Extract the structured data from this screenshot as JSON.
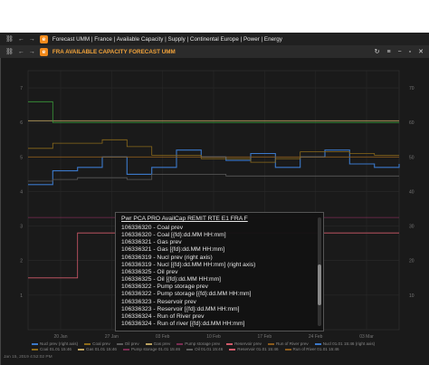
{
  "window": {
    "breadcrumb_title": "Forecast UMM | France | Available Capacity | Supply | Continental Europe | Power | Energy",
    "chart_title": "FRA AVAILABLE CAPACITY FORECAST UMM",
    "logo_letter": "e"
  },
  "colors": {
    "background": "#1a1a1a",
    "title": "#f2a33a",
    "nuclear": "#3b78c9",
    "coal": "#8c6a1a",
    "oil": "#5a5a5a",
    "gas": "#b9a060",
    "pump_storage": "#7a2c52",
    "reservoir": "#d05a6a",
    "run_of_river": "#8a5a1c",
    "gas_green": "#3a9a3a"
  },
  "tooltip": {
    "title": "Pwr PCA PRO AvailCap REMIT RTE E1 FRA F",
    "items": [
      "106336320 - Coal prev",
      "106336320 - Coal [{fd}:dd.MM HH:mm]",
      "106336321 - Gas prev",
      "106336321 - Gas [{fd}:dd.MM HH:mm]",
      "106336319 - Nucl prev (right axis)",
      "106336319 - Nucl [{fd}:dd.MM HH:mm] (right axis)",
      "106336325 - Oil prev",
      "106336325 - Oil [{fd}:dd.MM HH:mm]",
      "106336322 - Pump storage prev",
      "106336322 - Pump storage [{fd}:dd.MM HH:mm]",
      "106336323 - Reservoir prev",
      "106336323 - Reservoir [{fd}:dd.MM HH:mm]",
      "106336324 - Run of River prev",
      "106336324 - Run of river [{fd}:dd.MM HH:mm]"
    ]
  },
  "legend": [
    {
      "label": "Nucl prev (right axis)",
      "color": "#3b78c9"
    },
    {
      "label": "Coal prev",
      "color": "#8c6a1a"
    },
    {
      "label": "Oil prev",
      "color": "#5a5a5a"
    },
    {
      "label": "Gas prev",
      "color": "#b9a060"
    },
    {
      "label": "Pump storage prev",
      "color": "#7a2c52"
    },
    {
      "label": "Reservoir prev",
      "color": "#d05a6a"
    },
    {
      "label": "Run of River prev",
      "color": "#8a5a1c"
    },
    {
      "label": "Nucl 01.01 15:46 (right axis)",
      "color": "#3b78c9"
    },
    {
      "label": "Coal 01.01 15:46",
      "color": "#8c6a1a"
    },
    {
      "label": "Gas 01.01 15:46",
      "color": "#b9a060"
    },
    {
      "label": "Pump storage 01.01 15:46",
      "color": "#7a2c52"
    },
    {
      "label": "Oil 01.01 15:46",
      "color": "#5a5a5a"
    },
    {
      "label": "Reservoir 01.01 15:46",
      "color": "#d05a6a"
    },
    {
      "label": "Run of River 01.01 15:46",
      "color": "#8a5a1c"
    }
  ],
  "timestamp": "Jan 15, 2019 4:52:02 PM",
  "chart_data": {
    "type": "line",
    "left_ticks": [
      "1",
      "2",
      "3",
      "4",
      "5",
      "6",
      "7"
    ],
    "right_ticks": [
      "10",
      "20",
      "30",
      "40",
      "50",
      "60",
      "70"
    ],
    "x_ticks": [
      "20 Jan",
      "27 Jan",
      "03 Feb",
      "10 Feb",
      "17 Feb",
      "24 Feb",
      "03 Mar"
    ],
    "ylim_left": [
      0,
      7.5
    ],
    "ylim_right": [
      0,
      75
    ],
    "grid": true,
    "series": [
      {
        "key": "nuclear",
        "axis": "right",
        "values": [
          42,
          46,
          47,
          50,
          45,
          47,
          52,
          50,
          49,
          51,
          47,
          50,
          52,
          48,
          47,
          48
        ]
      },
      {
        "key": "coal",
        "axis": "left",
        "values": [
          5.25,
          5.4,
          5.4,
          5.5,
          5.3,
          5.05,
          5.05,
          4.95,
          4.95,
          4.85,
          4.95,
          5.15,
          5.15,
          5.1,
          5.05,
          5.05
        ]
      },
      {
        "key": "gas",
        "axis": "left",
        "values": [
          6.05,
          6.05,
          6.05,
          6.05,
          6.05,
          6.05,
          6.05,
          6.05,
          6.05,
          6.05,
          6.05,
          6.05,
          6.05,
          6.05,
          6.05,
          6.05
        ]
      },
      {
        "key": "oil",
        "axis": "left",
        "values": [
          4.3,
          4.35,
          4.4,
          4.4,
          4.35,
          4.5,
          4.5,
          4.5,
          4.45,
          4.45,
          4.45,
          4.45,
          4.45,
          4.45,
          4.45,
          4.45
        ]
      },
      {
        "key": "pump_storage",
        "axis": "left",
        "values": [
          3.25,
          3.25,
          3.25,
          3.25,
          3.25,
          3.25,
          3.25,
          3.25,
          3.25,
          3.25,
          3.25,
          3.25,
          3.25,
          3.25,
          3.25,
          3.25
        ]
      },
      {
        "key": "reservoir",
        "axis": "left",
        "values": [
          1.5,
          1.5,
          2.8,
          2.8,
          2.8,
          2.8,
          2.8,
          2.8,
          2.8,
          2.8,
          2.8,
          2.8,
          2.8,
          2.8,
          2.8,
          2.8
        ]
      },
      {
        "key": "run_of_river",
        "axis": "left",
        "values": [
          5.0,
          5.0,
          5.0,
          5.0,
          5.0,
          5.0,
          5.0,
          5.0,
          5.0,
          5.0,
          5.0,
          5.0,
          5.0,
          5.0,
          5.0,
          5.0
        ]
      },
      {
        "key": "gas_green",
        "axis": "left",
        "values": [
          6.6,
          6.0,
          6.0,
          6.0,
          6.0,
          6.0,
          6.0,
          6.0,
          6.0,
          6.0,
          6.0,
          6.0,
          6.0,
          6.0,
          6.0,
          6.0
        ]
      }
    ]
  }
}
